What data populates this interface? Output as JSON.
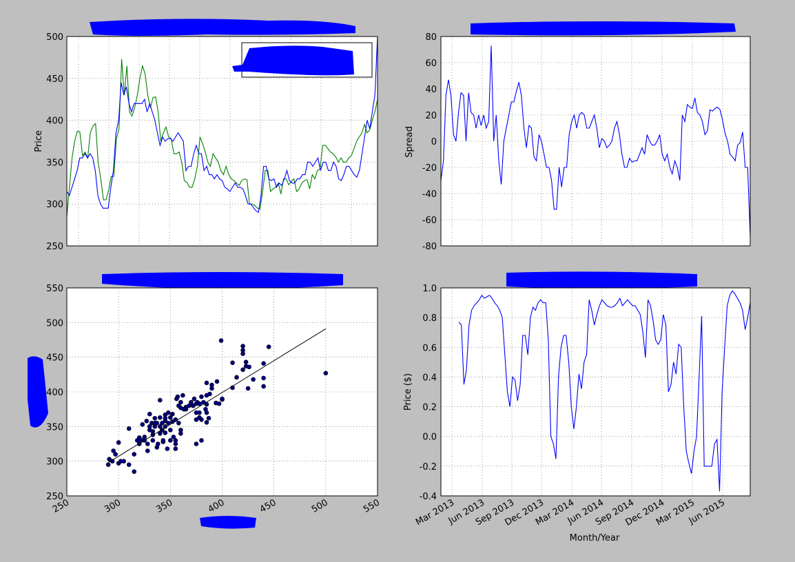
{
  "charts": {
    "tl": {
      "type": "line",
      "ylabel": "Price",
      "ylim": [
        250,
        500
      ],
      "yticks": [
        250,
        300,
        350,
        400,
        450,
        500
      ],
      "grid": true,
      "legend": "top-right (redacted)",
      "colors": {
        "s1": "#0000ff",
        "s2": "#008000"
      },
      "series": [
        {
          "color": "#008000",
          "values": [
            285,
            320,
            355,
            375,
            387,
            386,
            358,
            362,
            355,
            385,
            393,
            396,
            350,
            330,
            305,
            305,
            316,
            333,
            333,
            378,
            390,
            473,
            430,
            465,
            410,
            405,
            415,
            430,
            450,
            465,
            455,
            430,
            415,
            427,
            428,
            410,
            375,
            385,
            392,
            380,
            378,
            360,
            360,
            362,
            350,
            328,
            326,
            320,
            320,
            330,
            345,
            380,
            372,
            362,
            350,
            345,
            360,
            355,
            350,
            340,
            335,
            345,
            335,
            330,
            328,
            325,
            322,
            328,
            330,
            329,
            300,
            300,
            298,
            295,
            294,
            315,
            340,
            340,
            315,
            318,
            320,
            325,
            312,
            330,
            330,
            323,
            327,
            330,
            315,
            318,
            325,
            328,
            329,
            318,
            335,
            330,
            340,
            342,
            370,
            370,
            366,
            362,
            360,
            356,
            350,
            355,
            350,
            350,
            355,
            358,
            366,
            375,
            380,
            385,
            395,
            385,
            388,
            400,
            410,
            425
          ]
        },
        {
          "color": "#0000ff",
          "values": [
            315,
            310,
            320,
            330,
            340,
            355,
            355,
            360,
            355,
            360,
            355,
            340,
            310,
            300,
            295,
            295,
            295,
            320,
            340,
            385,
            400,
            445,
            430,
            440,
            420,
            410,
            420,
            420,
            420,
            420,
            425,
            410,
            420,
            410,
            400,
            385,
            370,
            380,
            375,
            378,
            378,
            375,
            380,
            385,
            380,
            375,
            340,
            345,
            345,
            360,
            370,
            360,
            360,
            340,
            345,
            335,
            335,
            330,
            335,
            330,
            328,
            320,
            318,
            315,
            320,
            325,
            320,
            320,
            318,
            310,
            300,
            300,
            296,
            292,
            290,
            310,
            345,
            345,
            330,
            328,
            330,
            320,
            325,
            322,
            330,
            340,
            328,
            325,
            325,
            330,
            330,
            335,
            335,
            350,
            350,
            345,
            350,
            355,
            340,
            350,
            350,
            340,
            340,
            350,
            345,
            330,
            328,
            335,
            345,
            345,
            340,
            335,
            332,
            340,
            360,
            380,
            400,
            390,
            410,
            430,
            500
          ]
        }
      ]
    },
    "tr": {
      "type": "line",
      "ylabel": "Spread",
      "ylim": [
        -80,
        80
      ],
      "yticks": [
        -80,
        -60,
        -40,
        -20,
        0,
        20,
        40,
        60,
        80
      ],
      "grid": true,
      "colors": {
        "s1": "#0000ff"
      },
      "values": [
        -30,
        -15,
        35,
        47,
        35,
        5,
        0,
        22,
        37,
        35,
        0,
        37,
        22,
        20,
        10,
        20,
        12,
        20,
        10,
        15,
        73,
        0,
        20,
        -15,
        -33,
        0,
        10,
        20,
        30,
        30,
        38,
        45,
        35,
        10,
        -5,
        12,
        10,
        -12,
        -15,
        5,
        0,
        -10,
        -20,
        -20,
        -30,
        -52,
        -52,
        -20,
        -35,
        -20,
        -20,
        5,
        15,
        20,
        10,
        20,
        22,
        20,
        10,
        10,
        15,
        20,
        10,
        -5,
        2,
        0,
        -5,
        -3,
        0,
        10,
        15,
        5,
        -10,
        -20,
        -20,
        -13,
        -16,
        -15,
        -15,
        -10,
        -5,
        -10,
        5,
        0,
        -3,
        -3,
        0,
        5,
        -10,
        -15,
        -10,
        -20,
        -25,
        -15,
        -20,
        -30,
        20,
        15,
        28,
        26,
        25,
        33,
        22,
        20,
        15,
        5,
        8,
        24,
        23,
        25,
        26,
        24,
        16,
        6,
        0,
        -10,
        -12,
        -15,
        -3,
        -1,
        7,
        -20,
        -20,
        -73
      ]
    },
    "bl": {
      "type": "scatter",
      "xlim": [
        250,
        550
      ],
      "ylim": [
        250,
        550
      ],
      "xticks": [
        250,
        300,
        350,
        400,
        450,
        500,
        550
      ],
      "yticks": [
        250,
        300,
        350,
        400,
        450,
        500,
        550
      ],
      "grid": true,
      "colors": {
        "points": "#000080",
        "fit": "#000000"
      },
      "fit_line": {
        "x1": 290,
        "y1": 298,
        "x2": 500,
        "y2": 491
      },
      "points": [
        [
          290,
          295
        ],
        [
          291,
          303
        ],
        [
          294,
          300
        ],
        [
          295,
          315
        ],
        [
          297,
          310
        ],
        [
          300,
          297
        ],
        [
          300,
          327
        ],
        [
          302,
          300
        ],
        [
          305,
          300
        ],
        [
          310,
          347
        ],
        [
          310,
          295
        ],
        [
          315,
          285
        ],
        [
          315,
          310
        ],
        [
          318,
          330
        ],
        [
          320,
          325
        ],
        [
          320,
          334
        ],
        [
          322,
          330
        ],
        [
          323,
          353
        ],
        [
          325,
          335
        ],
        [
          325,
          330
        ],
        [
          327,
          358
        ],
        [
          328,
          325
        ],
        [
          328,
          315
        ],
        [
          330,
          345
        ],
        [
          330,
          368
        ],
        [
          330,
          350
        ],
        [
          332,
          355
        ],
        [
          333,
          343
        ],
        [
          333,
          338
        ],
        [
          333,
          330
        ],
        [
          335,
          362
        ],
        [
          335,
          355
        ],
        [
          335,
          350
        ],
        [
          337,
          355
        ],
        [
          337,
          320
        ],
        [
          338,
          325
        ],
        [
          340,
          340
        ],
        [
          340,
          350
        ],
        [
          340,
          388
        ],
        [
          340,
          363
        ],
        [
          342,
          355
        ],
        [
          342,
          345
        ],
        [
          343,
          328
        ],
        [
          343,
          330
        ],
        [
          345,
          367
        ],
        [
          345,
          362
        ],
        [
          345,
          358
        ],
        [
          345,
          350
        ],
        [
          345,
          341
        ],
        [
          347,
          318
        ],
        [
          348,
          370
        ],
        [
          348,
          355
        ],
        [
          350,
          345
        ],
        [
          350,
          363
        ],
        [
          350,
          330
        ],
        [
          352,
          357
        ],
        [
          352,
          368
        ],
        [
          353,
          335
        ],
        [
          355,
          330
        ],
        [
          355,
          318
        ],
        [
          355,
          325
        ],
        [
          355,
          360
        ],
        [
          356,
          390
        ],
        [
          357,
          393
        ],
        [
          358,
          355
        ],
        [
          358,
          380
        ],
        [
          360,
          385
        ],
        [
          360,
          377
        ],
        [
          360,
          340
        ],
        [
          360,
          345
        ],
        [
          362,
          395
        ],
        [
          363,
          375
        ],
        [
          365,
          378
        ],
        [
          365,
          375
        ],
        [
          368,
          380
        ],
        [
          370,
          385
        ],
        [
          372,
          380
        ],
        [
          373,
          390
        ],
        [
          375,
          360
        ],
        [
          375,
          325
        ],
        [
          375,
          383
        ],
        [
          375,
          370
        ],
        [
          376,
          385
        ],
        [
          378,
          383
        ],
        [
          378,
          370
        ],
        [
          378,
          363
        ],
        [
          380,
          330
        ],
        [
          380,
          360
        ],
        [
          380,
          393
        ],
        [
          382,
          385
        ],
        [
          384,
          375
        ],
        [
          385,
          413
        ],
        [
          385,
          395
        ],
        [
          385,
          382
        ],
        [
          385,
          356
        ],
        [
          385,
          370
        ],
        [
          387,
          362
        ],
        [
          388,
          397
        ],
        [
          390,
          410
        ],
        [
          390,
          405
        ],
        [
          394,
          384
        ],
        [
          395,
          415
        ],
        [
          397,
          383
        ],
        [
          399,
          474
        ],
        [
          400,
          389
        ],
        [
          400,
          390
        ],
        [
          410,
          406
        ],
        [
          410,
          442
        ],
        [
          414,
          421
        ],
        [
          420,
          432
        ],
        [
          420,
          466
        ],
        [
          420,
          460
        ],
        [
          420,
          455
        ],
        [
          423,
          437
        ],
        [
          423,
          443
        ],
        [
          425,
          405
        ],
        [
          426,
          436
        ],
        [
          430,
          418
        ],
        [
          440,
          408
        ],
        [
          440,
          420
        ],
        [
          440,
          441
        ],
        [
          445,
          465
        ],
        [
          500,
          427
        ]
      ]
    },
    "br": {
      "type": "line",
      "ylabel": "Price ($)",
      "xlabel": "Month/Year",
      "ylim": [
        -0.4,
        1.0
      ],
      "yticks": [
        "-0.4",
        "-0.2",
        "0.0",
        "0.2",
        "0.4",
        "0.6",
        "0.8",
        "1.0"
      ],
      "xticks": [
        "Mar 2013",
        "Jun 2013",
        "Sep 2013",
        "Dec 2013",
        "Mar 2014",
        "Jun 2014",
        "Sep 2014",
        "Dec 2014",
        "Mar 2015",
        "Jun 2015"
      ],
      "grid": true,
      "colors": {
        "s1": "#0000ff"
      },
      "values": [
        0.77,
        0.75,
        0.35,
        0.45,
        0.75,
        0.85,
        0.88,
        0.9,
        0.92,
        0.95,
        0.93,
        0.94,
        0.95,
        0.93,
        0.9,
        0.88,
        0.85,
        0.8,
        0.55,
        0.3,
        0.2,
        0.4,
        0.38,
        0.24,
        0.35,
        0.68,
        0.68,
        0.55,
        0.8,
        0.87,
        0.85,
        0.9,
        0.92,
        0.9,
        0.9,
        0.65,
        0.0,
        -0.05,
        -0.15,
        0.4,
        0.6,
        0.68,
        0.68,
        0.5,
        0.2,
        0.05,
        0.2,
        0.42,
        0.32,
        0.5,
        0.55,
        0.92,
        0.85,
        0.75,
        0.82,
        0.88,
        0.92,
        0.9,
        0.88,
        0.87,
        0.87,
        0.88,
        0.9,
        0.93,
        0.88,
        0.9,
        0.92,
        0.9,
        0.88,
        0.88,
        0.85,
        0.82,
        0.7,
        0.53,
        0.92,
        0.88,
        0.78,
        0.65,
        0.62,
        0.65,
        0.82,
        0.75,
        0.3,
        0.35,
        0.5,
        0.42,
        0.62,
        0.6,
        0.2,
        -0.1,
        -0.18,
        -0.25,
        -0.1,
        0.0,
        0.4,
        0.81,
        -0.2,
        -0.2,
        -0.2,
        -0.2,
        -0.05,
        -0.02,
        -0.37,
        0.3,
        0.6,
        0.88,
        0.95,
        0.98,
        0.96,
        0.93,
        0.9,
        0.85,
        0.72,
        0.8,
        0.9
      ]
    }
  }
}
